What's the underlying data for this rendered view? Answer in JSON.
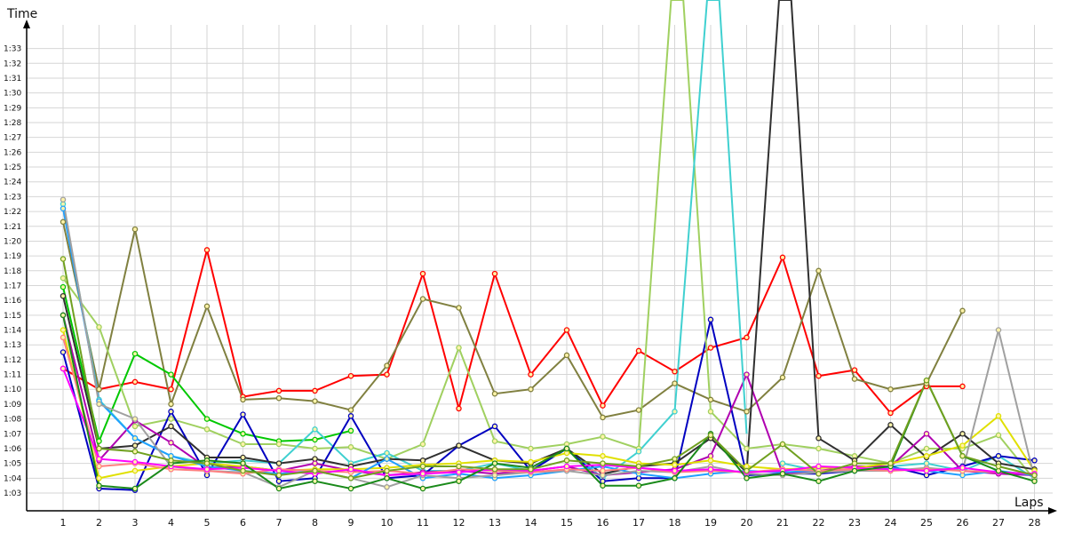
{
  "chart_data": {
    "type": "line",
    "ylabel": "Time",
    "xlabel": "Laps",
    "x": [
      1,
      2,
      3,
      4,
      5,
      6,
      7,
      8,
      9,
      10,
      11,
      12,
      13,
      14,
      15,
      16,
      17,
      18,
      19,
      20,
      21,
      22,
      23,
      24,
      25,
      26,
      27,
      28
    ],
    "y_ticks": [
      "1:03",
      "1:04",
      "1:05",
      "1:06",
      "1:07",
      "1:08",
      "1:09",
      "1:10",
      "1:11",
      "1:12",
      "1:13",
      "1:14",
      "1:15",
      "1:16",
      "1:17",
      "1:18",
      "1:19",
      "1:20",
      "1:21",
      "1:22",
      "1:23",
      "1:24",
      "1:25",
      "1:26",
      "1:27",
      "1:28",
      "1:29",
      "1:30",
      "1:31",
      "1:32",
      "1:33"
    ],
    "ylim_seconds": [
      62,
      95.5
    ],
    "grid": true,
    "series": [
      {
        "color": "#ff0000",
        "values": [
          71.4,
          70.0,
          70.5,
          70.0,
          79.4,
          69.5,
          69.9,
          69.9,
          70.9,
          71.0,
          77.8,
          68.7,
          77.8,
          71.0,
          74.0,
          68.9,
          72.6,
          71.2,
          72.8,
          73.5,
          78.9,
          70.9,
          71.3,
          68.4,
          70.2,
          70.2,
          null,
          null
        ]
      },
      {
        "color": "#808040",
        "values": [
          81.3,
          70.0,
          80.8,
          69.0,
          75.6,
          69.3,
          69.4,
          69.2,
          68.6,
          71.6,
          76.1,
          75.5,
          69.7,
          70.0,
          72.3,
          68.1,
          68.6,
          70.4,
          69.3,
          68.5,
          70.8,
          78.0,
          70.7,
          70.0,
          70.4,
          75.3,
          null,
          null
        ]
      },
      {
        "color": "#00c800",
        "values": [
          76.9,
          66.5,
          72.4,
          71.0,
          68.0,
          67.0,
          66.5,
          66.6,
          67.2,
          null,
          null,
          null,
          null,
          null,
          null,
          null,
          null,
          null,
          null,
          null,
          null,
          null,
          null,
          null,
          null,
          null,
          null,
          null
        ]
      },
      {
        "color": "#a0d060",
        "values": [
          77.5,
          74.2,
          67.5,
          68.0,
          67.3,
          66.3,
          66.3,
          66.0,
          66.1,
          65.3,
          66.3,
          72.8,
          66.5,
          66.0,
          66.3,
          66.8,
          66.0,
          null,
          68.5,
          66.0,
          66.3,
          66.0,
          65.5,
          65.0,
          66.0,
          66.0,
          66.9,
          63.9
        ]
      },
      {
        "color": "#40d0d0",
        "values": [
          82.5,
          69.3,
          66.7,
          65.5,
          65.0,
          65.2,
          65.0,
          67.3,
          65.0,
          65.7,
          64.5,
          64.5,
          65.0,
          64.5,
          66.0,
          64.0,
          65.8,
          68.5,
          null,
          null,
          65.0,
          64.5,
          64.5,
          64.8,
          65.0,
          64.5,
          65.5,
          64.0
        ]
      },
      {
        "color": "#0000c0",
        "values": [
          72.5,
          63.3,
          63.2,
          68.5,
          64.2,
          68.3,
          63.8,
          64.0,
          68.2,
          64.0,
          64.2,
          66.2,
          67.5,
          64.5,
          66.0,
          63.8,
          64.0,
          64.0,
          74.7,
          64.2,
          64.3,
          64.3,
          64.5,
          64.8,
          64.2,
          64.8,
          65.5,
          65.2
        ]
      },
      {
        "color": "#303030",
        "values": [
          76.3,
          66.0,
          66.2,
          67.5,
          65.4,
          65.4,
          65.0,
          65.3,
          64.8,
          65.3,
          65.2,
          66.2,
          65.2,
          65.0,
          66.0,
          64.3,
          64.8,
          65.0,
          66.7,
          64.4,
          null,
          66.7,
          65.2,
          67.6,
          65.4,
          67.0,
          65.0,
          64.6
        ]
      },
      {
        "color": "#b000b0",
        "values": [
          75.0,
          65.2,
          67.9,
          66.4,
          64.7,
          64.8,
          64.5,
          65.0,
          64.5,
          64.2,
          64.4,
          64.5,
          64.3,
          64.5,
          64.8,
          64.2,
          64.4,
          64.6,
          65.5,
          71.0,
          64.3,
          64.5,
          64.8,
          64.8,
          67.0,
          64.5,
          64.3,
          64.2
        ]
      },
      {
        "color": "#e0e000",
        "values": [
          74.0,
          64.0,
          64.5,
          64.8,
          65.0,
          64.8,
          64.5,
          64.6,
          64.6,
          64.7,
          64.9,
          65.0,
          65.2,
          65.1,
          65.7,
          65.5,
          65.0,
          64.9,
          65.2,
          64.8,
          64.6,
          64.7,
          64.7,
          65.0,
          65.5,
          66.2,
          68.2,
          64.5
        ]
      },
      {
        "color": "#20a0ff",
        "values": [
          82.2,
          69.2,
          66.7,
          65.5,
          64.8,
          64.5,
          64.3,
          64.5,
          64.0,
          65.3,
          64.0,
          64.3,
          64.0,
          64.2,
          64.5,
          64.8,
          64.3,
          64.0,
          64.3,
          64.5,
          64.4,
          64.5,
          64.5,
          64.7,
          64.5,
          64.2,
          64.5,
          64.2
        ]
      },
      {
        "color": "#a0a0a0",
        "values": [
          82.8,
          69.0,
          68.0,
          64.8,
          64.5,
          64.4,
          63.4,
          64.5,
          64.0,
          63.4,
          64.2,
          64.0,
          64.2,
          64.4,
          64.5,
          64.2,
          64.5,
          64.4,
          64.8,
          64.3,
          64.2,
          64.4,
          64.5,
          64.5,
          64.7,
          64.5,
          74.0,
          64.0
        ]
      },
      {
        "color": "#ff8080",
        "values": [
          73.5,
          64.8,
          65.0,
          64.6,
          64.5,
          64.3,
          64.6,
          64.5,
          64.4,
          64.5,
          64.3,
          64.6,
          64.5,
          64.4,
          64.6,
          64.5,
          64.7,
          64.4,
          64.5,
          64.4,
          64.6,
          64.5,
          64.6,
          64.5,
          64.6,
          64.5,
          64.4,
          64.3
        ]
      },
      {
        "color": "#ff00ff",
        "values": [
          71.4,
          65.3,
          65.1,
          64.8,
          64.6,
          64.7,
          64.5,
          64.3,
          64.6,
          64.2,
          64.3,
          64.4,
          64.6,
          64.5,
          64.8,
          64.9,
          64.7,
          64.5,
          64.6,
          64.4,
          64.5,
          64.8,
          64.7,
          64.6,
          64.5,
          64.7,
          64.4,
          64.3
        ]
      },
      {
        "color": "#1a8a1a",
        "values": [
          75.0,
          63.5,
          63.3,
          65.0,
          65.2,
          65.0,
          63.3,
          63.8,
          63.3,
          64.0,
          63.3,
          63.8,
          65.0,
          64.7,
          66.0,
          63.5,
          63.5,
          64.0,
          67.0,
          64.0,
          64.3,
          63.8,
          64.5,
          64.8,
          70.6,
          65.5,
          64.5,
          63.8
        ]
      },
      {
        "color": "#70a020",
        "values": [
          78.8,
          66.0,
          65.8,
          65.2,
          65.0,
          64.5,
          64.2,
          64.5,
          64.0,
          64.5,
          64.8,
          64.8,
          64.6,
          64.6,
          65.2,
          65.0,
          64.8,
          65.3,
          66.9,
          64.5,
          66.3,
          64.3,
          65.0,
          65.0,
          70.6,
          65.5,
          64.8,
          64.2
        ]
      }
    ],
    "spikes": [
      {
        "color": "#a0d060",
        "from": [
          17,
          66.0
        ],
        "to": [
          19,
          68.5
        ]
      },
      {
        "color": "#40d0d0",
        "from": [
          18,
          68.5
        ],
        "to": [
          20,
          67.0
        ]
      },
      {
        "color": "#303030",
        "from": [
          20,
          64.4
        ],
        "to": [
          22,
          66.7
        ]
      }
    ]
  }
}
